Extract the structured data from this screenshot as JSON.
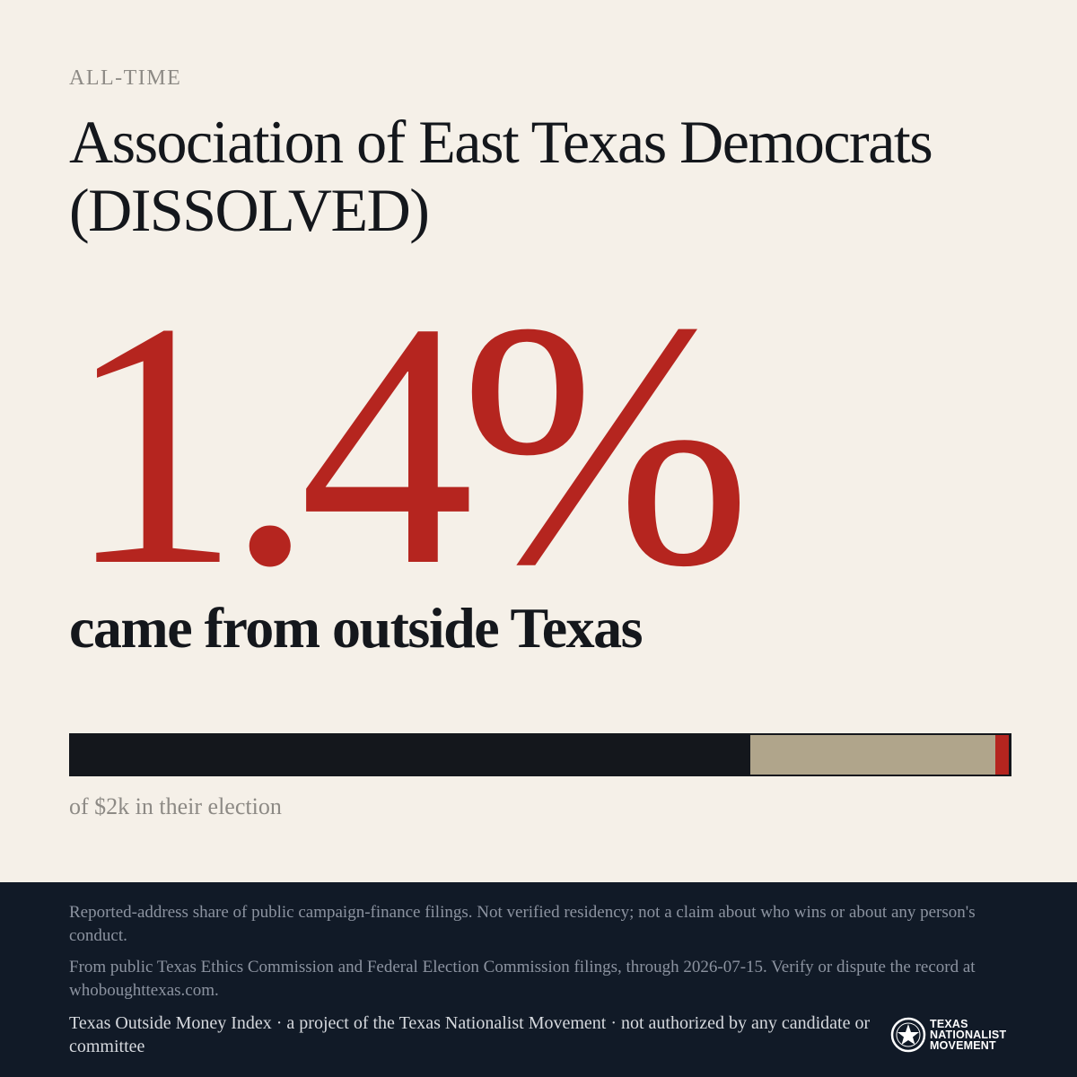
{
  "header": {
    "kicker": "ALL-TIME",
    "title": "Association of East Texas Democrats (DISSOLVED)"
  },
  "stat": {
    "value": "1.4%",
    "caption": "came from outside Texas"
  },
  "bar": {
    "segments": [
      {
        "name": "texas",
        "share": 0.724,
        "color": "#14171c"
      },
      {
        "name": "outside-other",
        "share": 0.261,
        "color": "#b0a58b"
      },
      {
        "name": "outside",
        "share": 0.014,
        "color": "#b5251f"
      }
    ],
    "caption": "of $2k in their election"
  },
  "footer": {
    "note1": "Reported-address share of public campaign-finance filings. Not verified residency; not a claim about who wins or about any person's conduct.",
    "note2": "From public Texas Ethics Commission and Federal Election Commission filings, through 2026-07-15. Verify or dispute the record at whoboughttexas.com.",
    "credit": "Texas Outside Money Index · a project of the Texas Nationalist Movement · not authorized by any candidate or committee",
    "logo_lines": [
      "TEXAS",
      "NATIONALIST",
      "MOVEMENT"
    ]
  }
}
